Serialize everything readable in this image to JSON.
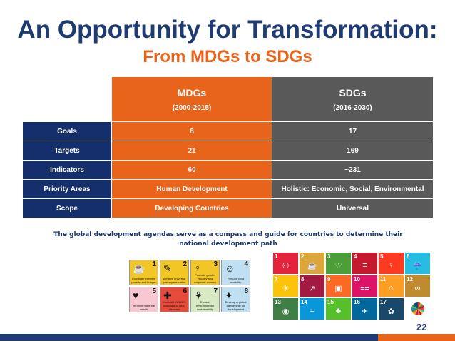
{
  "title": "An Opportunity for Transformation:",
  "subtitle": "From MDGs to SDGs",
  "table": {
    "mdg_header": "MDGs",
    "mdg_years": "(2000-2015)",
    "sdg_header": "SDGs",
    "sdg_years": "(2016-2030)",
    "rows": [
      {
        "label": "Goals",
        "mdg": "8",
        "sdg": "17"
      },
      {
        "label": "Targets",
        "mdg": "21",
        "sdg": "169"
      },
      {
        "label": "Indicators",
        "mdg": "60",
        "sdg": "~231"
      },
      {
        "label": "Priority Areas",
        "mdg": "Human Development",
        "sdg": "Holistic: Economic, Social, Environmental"
      },
      {
        "label": "Scope",
        "mdg": "Developing Countries",
        "sdg": "Universal"
      }
    ]
  },
  "caption": "The global development agendas serve as a compass and guide for countries to determine their national development path",
  "mdg_icons": [
    {
      "num": "1",
      "label": "Eradicate extreme poverty and hunger",
      "color": "#f2c624",
      "icon": "bowl-icon"
    },
    {
      "num": "2",
      "label": "Achieve universal primary education",
      "color": "#f2c624",
      "icon": "pencil-icon"
    },
    {
      "num": "3",
      "label": "Promote gender equality and empower women",
      "color": "#f2c624",
      "icon": "gender-icon"
    },
    {
      "num": "4",
      "label": "Reduce child mortality",
      "color": "#bfe0f2",
      "icon": "child-icon"
    },
    {
      "num": "5",
      "label": "Improve maternal health",
      "color": "#f7c8d2",
      "icon": "mother-icon"
    },
    {
      "num": "6",
      "label": "Combat HIV/AIDS, malaria and other diseases",
      "color": "#e84b3a",
      "icon": "medical-icon"
    },
    {
      "num": "7",
      "label": "Ensure environmental sustainability",
      "color": "#d7eac4",
      "icon": "plant-icon"
    },
    {
      "num": "8",
      "label": "Develop a global partnership for development",
      "color": "#bfe0f2",
      "icon": "partnership-icon"
    }
  ],
  "sdg_icons": [
    {
      "num": "1",
      "color": "#e5243b",
      "icon": "family-icon"
    },
    {
      "num": "2",
      "color": "#dda63a",
      "icon": "bowl-icon"
    },
    {
      "num": "3",
      "color": "#4c9f38",
      "icon": "heartbeat-icon"
    },
    {
      "num": "4",
      "color": "#c5192d",
      "icon": "book-icon"
    },
    {
      "num": "5",
      "color": "#ff3a21",
      "icon": "gender-icon"
    },
    {
      "num": "6",
      "color": "#26bde2",
      "icon": "water-icon"
    },
    {
      "num": "7",
      "color": "#fcc30b",
      "icon": "sun-icon"
    },
    {
      "num": "8",
      "color": "#a21942",
      "icon": "growth-chart-icon"
    },
    {
      "num": "9",
      "color": "#fd6925",
      "icon": "cubes-icon"
    },
    {
      "num": "10",
      "color": "#dd1367",
      "icon": "equal-icon"
    },
    {
      "num": "11",
      "color": "#fd9d24",
      "icon": "buildings-icon"
    },
    {
      "num": "12",
      "color": "#bf8b2e",
      "icon": "infinity-icon"
    },
    {
      "num": "13",
      "color": "#3f7e44",
      "icon": "eye-globe-icon"
    },
    {
      "num": "14",
      "color": "#0a97d9",
      "icon": "fish-icon"
    },
    {
      "num": "15",
      "color": "#56c02b",
      "icon": "tree-icon"
    },
    {
      "num": "16",
      "color": "#00689d",
      "icon": "dove-icon"
    },
    {
      "num": "17",
      "color": "#19486a",
      "icon": "partnership-ring-icon"
    }
  ],
  "page_number": "22",
  "colors": {
    "navy": "#1f3b73",
    "orange": "#e8641b",
    "gray": "#595959",
    "row_label": "#142f6b"
  }
}
